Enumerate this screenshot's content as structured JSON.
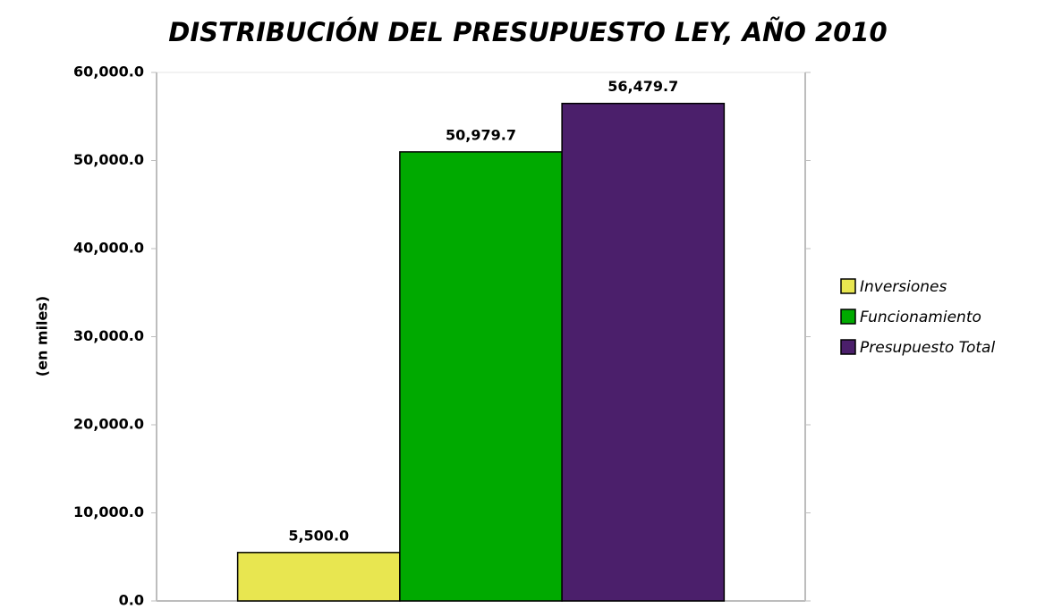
{
  "chart_data": {
    "type": "bar",
    "title": "DISTRIBUCIÓN DEL PRESUPUESTO LEY, AÑO 2010",
    "y_label": "(en miles)",
    "categories": [
      null
    ],
    "series": [
      {
        "name": "Inversiones",
        "color": "#e8e650",
        "values": [
          5500.0
        ],
        "value_labels": [
          "5,500.0"
        ]
      },
      {
        "name": "Funcionamiento",
        "color": "#00aa00",
        "values": [
          50979.7
        ],
        "value_labels": [
          "50,979.7"
        ]
      },
      {
        "name": "Presupuesto Total",
        "color": "#4b1f6b",
        "values": [
          56479.7
        ],
        "value_labels": [
          "56,479.7"
        ]
      }
    ],
    "ylim": [
      0,
      60000
    ],
    "yticks": [
      {
        "value": 0,
        "label": "0.0"
      },
      {
        "value": 10000,
        "label": "10,000.0"
      },
      {
        "value": 20000,
        "label": "20,000.0"
      },
      {
        "value": 30000,
        "label": "30,000.0"
      },
      {
        "value": 40000,
        "label": "40,000.0"
      },
      {
        "value": 50000,
        "label": "50,000.0"
      },
      {
        "value": 60000,
        "label": "60,000.0"
      }
    ],
    "grid": false,
    "legend": "right"
  }
}
